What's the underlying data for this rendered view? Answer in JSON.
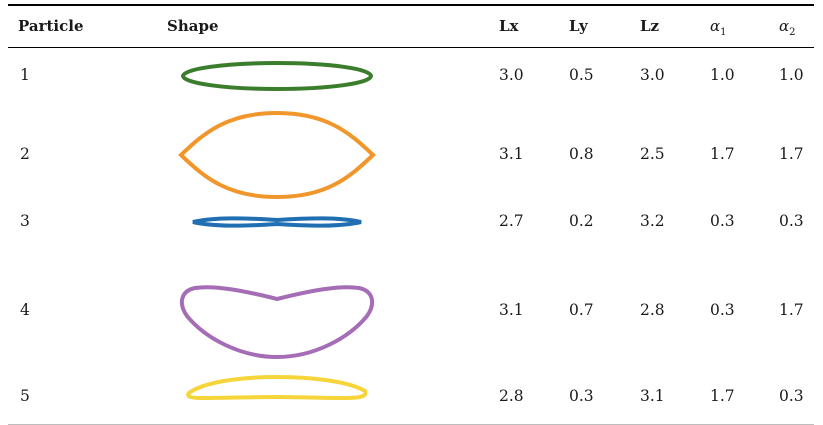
{
  "headers": {
    "particle": "Particle",
    "shape": "Shape",
    "lx": "Lx",
    "ly": "Ly",
    "lz": "Lz",
    "alpha1_symbol": "α",
    "alpha1_sub": "1",
    "alpha2_symbol": "α",
    "alpha2_sub": "2"
  },
  "rows": [
    {
      "particle": "1",
      "lx": "3.0",
      "ly": "0.5",
      "lz": "3.0",
      "alpha1": "1.0",
      "alpha2": "1.0",
      "shape_color": "#3a7d2c"
    },
    {
      "particle": "2",
      "lx": "3.1",
      "ly": "0.8",
      "lz": "2.5",
      "alpha1": "1.7",
      "alpha2": "1.7",
      "shape_color": "#f0962a"
    },
    {
      "particle": "3",
      "lx": "2.7",
      "ly": "0.2",
      "lz": "3.2",
      "alpha1": "0.3",
      "alpha2": "0.3",
      "shape_color": "#1f6fb2"
    },
    {
      "particle": "4",
      "lx": "3.1",
      "ly": "0.7",
      "lz": "2.8",
      "alpha1": "0.3",
      "alpha2": "1.7",
      "shape_color": "#a56db5"
    },
    {
      "particle": "5",
      "lx": "2.8",
      "ly": "0.3",
      "lz": "3.1",
      "alpha1": "1.7",
      "alpha2": "0.3",
      "shape_color": "#f5d53a"
    }
  ]
}
